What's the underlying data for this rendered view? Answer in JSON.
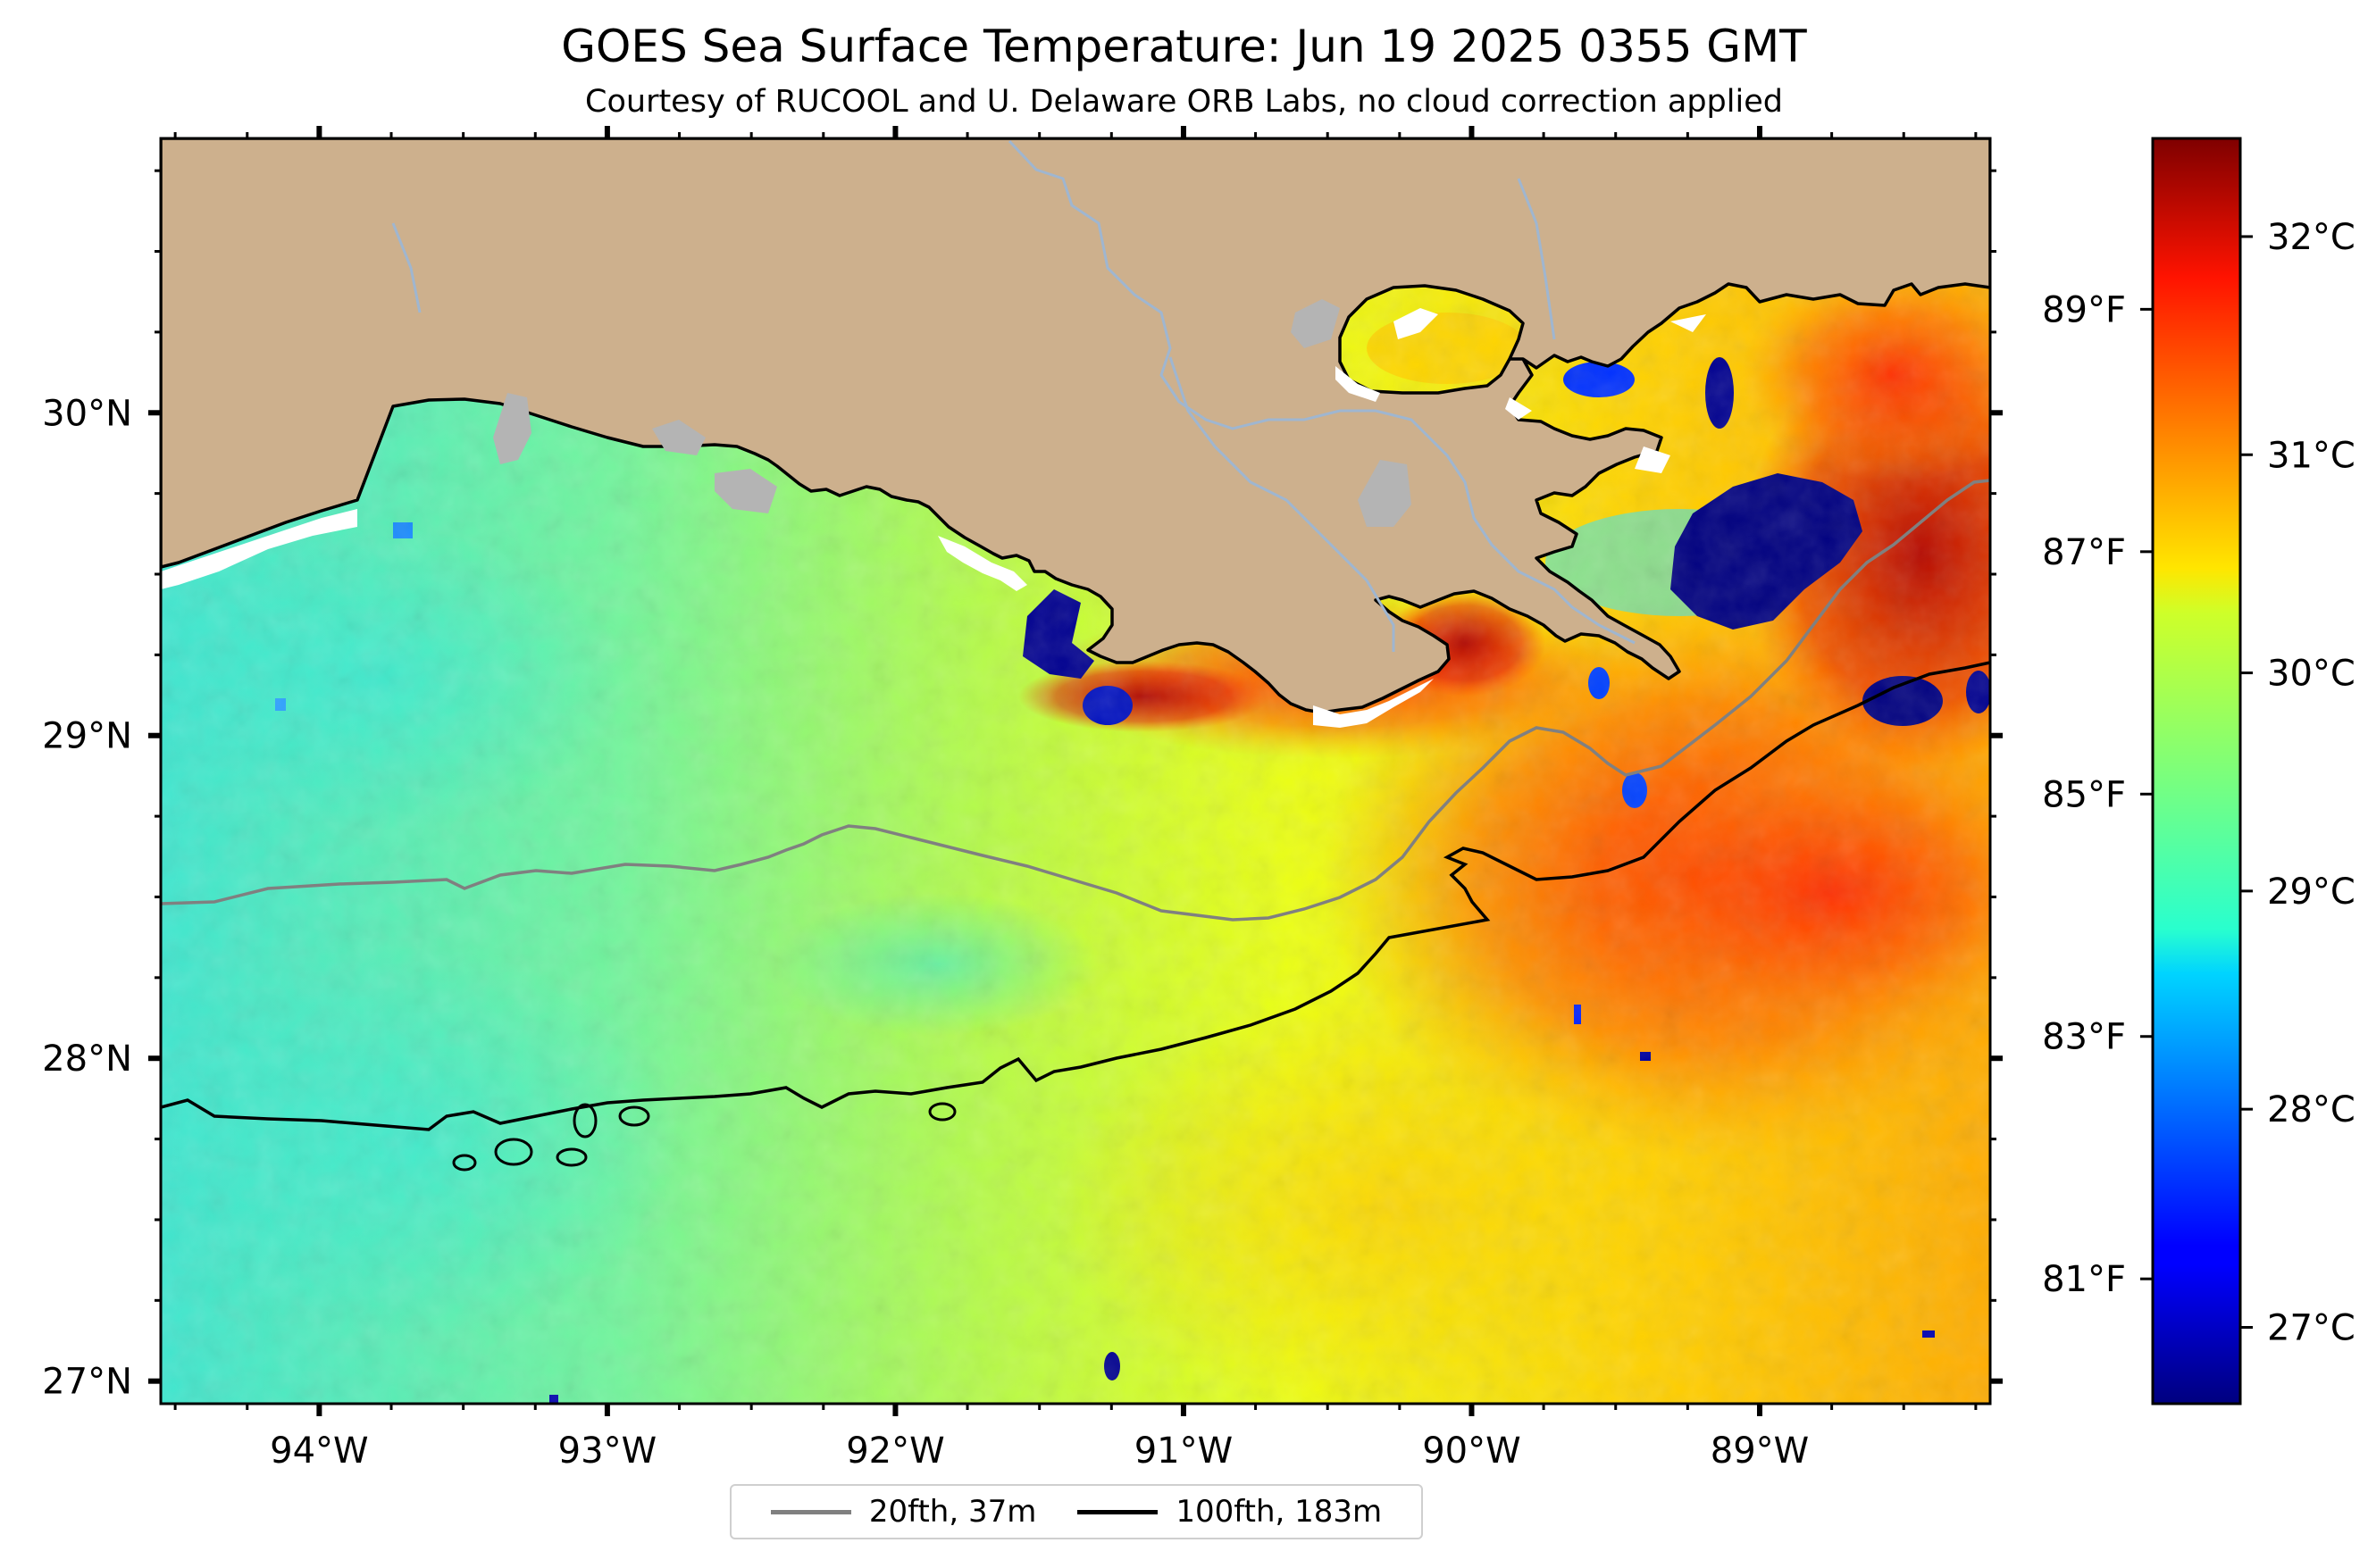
{
  "title": "GOES Sea Surface Temperature: Jun 19 2025 0355 GMT",
  "subtitle": "Courtesy of RUCOOL and U. Delaware ORB Labs, no cloud correction applied",
  "map": {
    "extent": {
      "lon_min": -94.55,
      "lon_max": -88.2,
      "lat_min": 26.93,
      "lat_max": 30.85
    },
    "colors": {
      "land": "#cdb08d",
      "lake": "#b4b4b4",
      "river": "#9fb6d0",
      "no_data": "#ffffff",
      "shelf_20fth": "#808080",
      "shelf_100fth": "#000000"
    },
    "lat_ticks": [
      {
        "value": 30,
        "label": "30°N"
      },
      {
        "value": 29,
        "label": "29°N"
      },
      {
        "value": 28,
        "label": "28°N"
      },
      {
        "value": 27,
        "label": "27°N"
      }
    ],
    "lon_ticks": [
      {
        "value": -94,
        "label": "94°W"
      },
      {
        "value": -93,
        "label": "93°W"
      },
      {
        "value": -92,
        "label": "92°W"
      },
      {
        "value": -91,
        "label": "91°W"
      },
      {
        "value": -90,
        "label": "90°W"
      },
      {
        "value": -89,
        "label": "89°W"
      }
    ]
  },
  "colorbar": {
    "colormap": "jet",
    "range_c": [
      26.65,
      32.45
    ],
    "celsius_ticks": [
      {
        "value": 27,
        "label": "27°C"
      },
      {
        "value": 28,
        "label": "28°C"
      },
      {
        "value": 29,
        "label": "29°C"
      },
      {
        "value": 30,
        "label": "30°C"
      },
      {
        "value": 31,
        "label": "31°C"
      },
      {
        "value": 32,
        "label": "32°C"
      }
    ],
    "fahrenheit_ticks": [
      {
        "value": 81,
        "label": "81°F"
      },
      {
        "value": 83,
        "label": "83°F"
      },
      {
        "value": 85,
        "label": "85°F"
      },
      {
        "value": 87,
        "label": "87°F"
      },
      {
        "value": 89,
        "label": "89°F"
      }
    ]
  },
  "legend": {
    "items": [
      {
        "label": "20fth, 37m",
        "color": "#808080"
      },
      {
        "label": "100fth, 183m",
        "color": "#000000"
      }
    ]
  }
}
